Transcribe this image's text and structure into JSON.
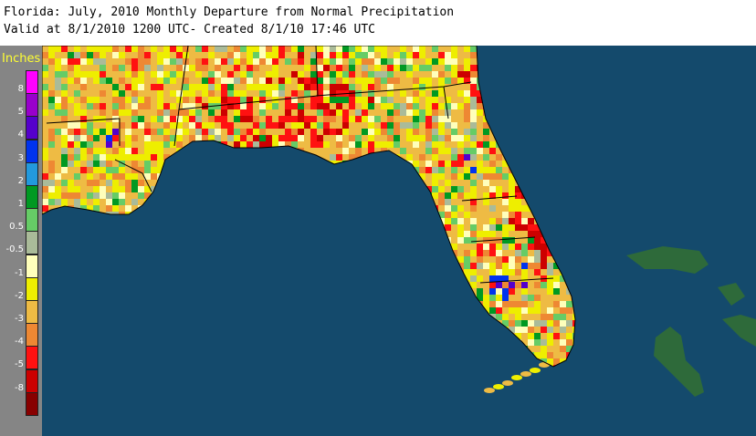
{
  "header": {
    "title": "Florida: July, 2010 Monthly Departure from Normal Precipitation",
    "subtitle": "Valid at 8/1/2010 1200 UTC- Created 8/1/10 17:46 UTC"
  },
  "legend": {
    "title": "Inches",
    "items": [
      {
        "label": "8",
        "color": "#ff00ff"
      },
      {
        "label": "5",
        "color": "#9900cc"
      },
      {
        "label": "4",
        "color": "#5500cc"
      },
      {
        "label": "3",
        "color": "#0033ee"
      },
      {
        "label": "2",
        "color": "#2299dd"
      },
      {
        "label": "1",
        "color": "#009922"
      },
      {
        "label": "0.5",
        "color": "#66cc66"
      },
      {
        "label": "-0.5",
        "color": "#aabb99"
      },
      {
        "label": "-1",
        "color": "#ffffbb"
      },
      {
        "label": "-2",
        "color": "#eeee00"
      },
      {
        "label": "-3",
        "color": "#eebb44"
      },
      {
        "label": "-4",
        "color": "#ee8833"
      },
      {
        "label": "-5",
        "color": "#ff1111"
      },
      {
        "label": "-8",
        "color": "#cc0000"
      },
      {
        "label": "",
        "color": "#880000"
      }
    ]
  },
  "map": {
    "ocean_color": "#144a6c",
    "land_base_color": "#e6a440",
    "bahamas_color": "#2e6a3a"
  }
}
